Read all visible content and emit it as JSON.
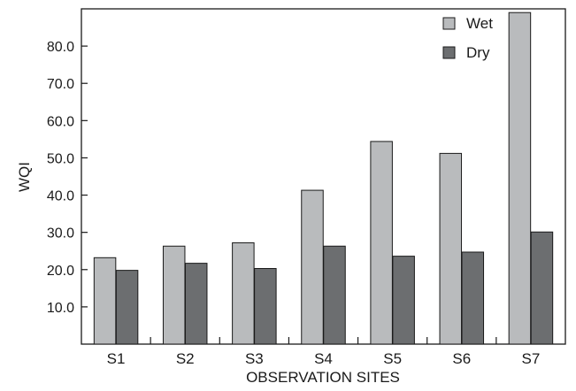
{
  "chart_data": {
    "type": "bar",
    "title": "",
    "xlabel": "OBSERVATION SITES",
    "ylabel": "WQI",
    "categories": [
      "S1",
      "S2",
      "S3",
      "S4",
      "S5",
      "S6",
      "S7"
    ],
    "series": [
      {
        "name": "Wet",
        "values": [
          23.2,
          26.3,
          27.2,
          41.3,
          54.4,
          51.2,
          89.0
        ],
        "color": "#b9bbbd"
      },
      {
        "name": "Dry",
        "values": [
          19.8,
          21.7,
          20.3,
          26.3,
          23.6,
          24.7,
          30.1
        ],
        "color": "#6c6e70"
      }
    ],
    "ylim": [
      0,
      90
    ],
    "yticks": [
      10,
      20,
      30,
      40,
      50,
      60,
      70,
      80
    ],
    "ytick_labels": [
      "10.0",
      "20.0",
      "30.0",
      "40.0",
      "50.0",
      "60.0",
      "70.0",
      "80.0"
    ],
    "grid": false,
    "legend_position": "top-right"
  }
}
